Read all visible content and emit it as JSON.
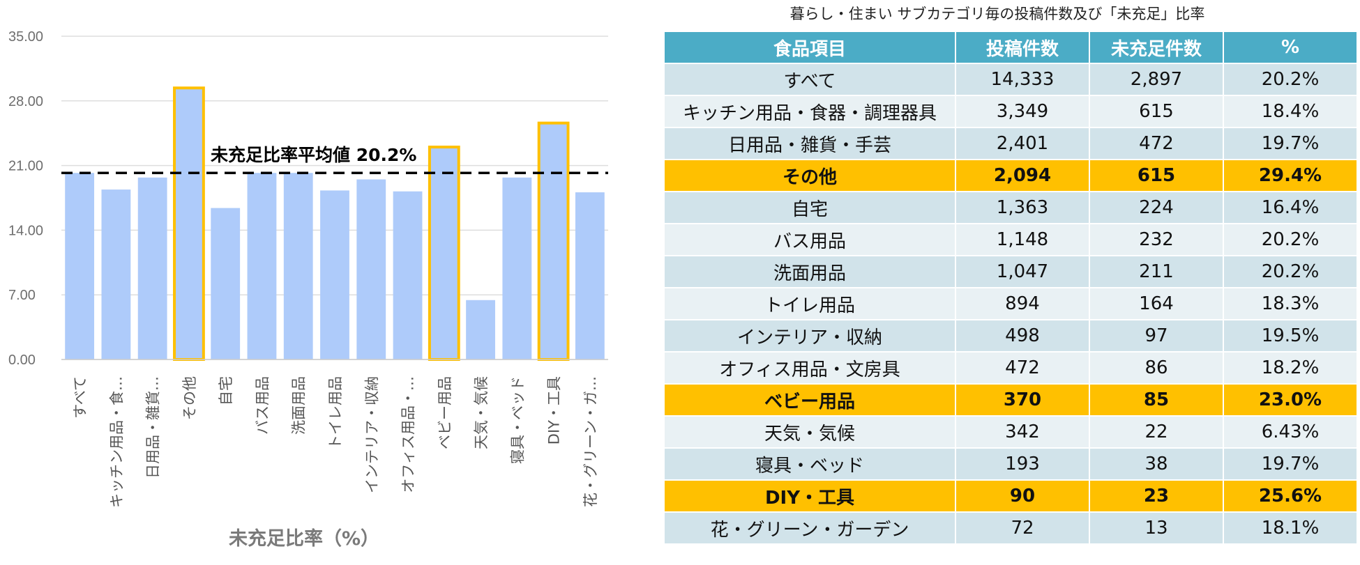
{
  "chart_data": {
    "type": "bar",
    "categories": [
      "すべて",
      "キッチン用品・食…",
      "日用品・雑貨…",
      "その他",
      "自宅",
      "バス用品",
      "洗面用品",
      "トイレ用品",
      "インテリア・収納",
      "オフィス用品・…",
      "ベビー用品",
      "天気・気候",
      "寝具・ベッド",
      "DIY・工具",
      "花・グリーン・ガ…"
    ],
    "values": [
      20.2,
      18.4,
      19.7,
      29.4,
      16.4,
      20.2,
      20.2,
      18.3,
      19.5,
      18.2,
      23.0,
      6.43,
      19.7,
      25.6,
      18.1
    ],
    "highlighted": [
      "その他",
      "ベビー用品",
      "DIY・工具"
    ],
    "yticks": [
      "0.00",
      "7.00",
      "14.00",
      "21.00",
      "28.00",
      "35.00"
    ],
    "ylim": [
      0,
      35
    ],
    "xlabel": "未充足比率（%）",
    "ylabel": "",
    "average": 20.2,
    "average_label": "未充足比率平均値 20.2%",
    "bar_color": "#aecbfa",
    "highlight_color": "#ffc000",
    "gridlines": true
  },
  "table": {
    "title": "暮らし・住まい サブカテゴリ毎の投稿件数及び「未充足」比率",
    "headers": [
      "食品項目",
      "投稿件数",
      "未充足件数",
      "%"
    ],
    "rows": [
      {
        "cells": [
          "すべて",
          "14,333",
          "2,897",
          "20.2%"
        ],
        "highlight": false
      },
      {
        "cells": [
          "キッチン用品・食器・調理器具",
          "3,349",
          "615",
          "18.4%"
        ],
        "highlight": false
      },
      {
        "cells": [
          "日用品・雑貨・手芸",
          "2,401",
          "472",
          "19.7%"
        ],
        "highlight": false
      },
      {
        "cells": [
          "その他",
          "2,094",
          "615",
          "29.4%"
        ],
        "highlight": true
      },
      {
        "cells": [
          "自宅",
          "1,363",
          "224",
          "16.4%"
        ],
        "highlight": false
      },
      {
        "cells": [
          "バス用品",
          "1,148",
          "232",
          "20.2%"
        ],
        "highlight": false
      },
      {
        "cells": [
          "洗面用品",
          "1,047",
          "211",
          "20.2%"
        ],
        "highlight": false
      },
      {
        "cells": [
          "トイレ用品",
          "894",
          "164",
          "18.3%"
        ],
        "highlight": false
      },
      {
        "cells": [
          "インテリア・収納",
          "498",
          "97",
          "19.5%"
        ],
        "highlight": false
      },
      {
        "cells": [
          "オフィス用品・文房具",
          "472",
          "86",
          "18.2%"
        ],
        "highlight": false
      },
      {
        "cells": [
          "ベビー用品",
          "370",
          "85",
          "23.0%"
        ],
        "highlight": true
      },
      {
        "cells": [
          "天気・気候",
          "342",
          "22",
          "6.43%"
        ],
        "highlight": false
      },
      {
        "cells": [
          "寝具・ベッド",
          "193",
          "38",
          "19.7%"
        ],
        "highlight": false
      },
      {
        "cells": [
          "DIY・工具",
          "90",
          "23",
          "25.6%"
        ],
        "highlight": true
      },
      {
        "cells": [
          "花・グリーン・ガーデン",
          "72",
          "13",
          "18.1%"
        ],
        "highlight": false
      }
    ]
  }
}
